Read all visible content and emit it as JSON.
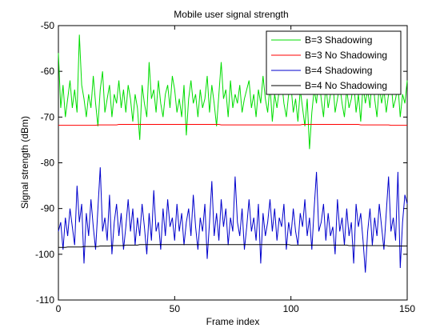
{
  "chart_data": {
    "type": "line",
    "title": "Mobile user signal strength",
    "xlabel": "Frame index",
    "ylabel": "Signal strength (dBm)",
    "xlim": [
      0,
      150
    ],
    "ylim": [
      -110,
      -50
    ],
    "xticks": [
      0,
      50,
      100,
      150
    ],
    "yticks": [
      -50,
      -60,
      -70,
      -80,
      -90,
      -100,
      -110
    ],
    "grid": false,
    "legend_position": "top-right",
    "series": [
      {
        "name": "B=3 Shadowing",
        "color": "#00dd00",
        "values": [
          -56,
          -68,
          -63,
          -70,
          -66,
          -62,
          -68,
          -64,
          -69,
          -52,
          -63,
          -66,
          -70,
          -65,
          -68,
          -61,
          -67,
          -72,
          -64,
          -60,
          -69,
          -66,
          -63,
          -70,
          -65,
          -67,
          -62,
          -68,
          -64,
          -69,
          -63,
          -66,
          -71,
          -65,
          -68,
          -75,
          -63,
          -67,
          -70,
          -58,
          -66,
          -64,
          -69,
          -62,
          -67,
          -70,
          -65,
          -63,
          -68,
          -61,
          -64,
          -69,
          -66,
          -70,
          -63,
          -74,
          -66,
          -62,
          -67,
          -65,
          -70,
          -64,
          -68,
          -66,
          -61,
          -69,
          -63,
          -67,
          -72,
          -65,
          -58,
          -66,
          -64,
          -70,
          -62,
          -68,
          -65,
          -67,
          -63,
          -69,
          -66,
          -64,
          -62,
          -68,
          -65,
          -70,
          -64,
          -67,
          -61,
          -66,
          -69,
          -63,
          -71,
          -65,
          -68,
          -64,
          -62,
          -67,
          -70,
          -65,
          -63,
          -69,
          -66,
          -71,
          -64,
          -68,
          -72,
          -66,
          -77,
          -69,
          -64,
          -67,
          -61,
          -66,
          -70,
          -63,
          -68,
          -65,
          -62,
          -69,
          -66,
          -63,
          -67,
          -70,
          -64,
          -68,
          -66,
          -62,
          -69,
          -65,
          -71,
          -63,
          -67,
          -64,
          -68,
          -60,
          -66,
          -70,
          -63,
          -67,
          -64,
          -69,
          -65,
          -62,
          -68,
          -66,
          -63,
          -70,
          -65,
          -67,
          -62
        ]
      },
      {
        "name": "B=3 No Shadowing",
        "color": "#ff0000",
        "values": [
          -71.8,
          -71.8,
          -71.8,
          -71.8,
          -71.8,
          -71.8,
          -71.8,
          -71.8,
          -71.8,
          -71.8,
          -71.8,
          -71.8,
          -71.8,
          -71.8,
          -71.8,
          -71.8,
          -71.8,
          -71.7,
          -71.7,
          -71.7,
          -71.7,
          -71.7,
          -71.7,
          -71.7,
          -71.7,
          -71.7,
          -71.6,
          -71.6,
          -71.6,
          -71.6,
          -71.6,
          -71.6,
          -71.6,
          -71.6,
          -71.6,
          -71.6,
          -71.6,
          -71.6,
          -71.6,
          -71.6,
          -71.6,
          -71.6,
          -71.6,
          -71.6,
          -71.6,
          -71.6,
          -71.6,
          -71.6,
          -71.6,
          -71.6,
          -71.6,
          -71.6,
          -71.6,
          -71.6,
          -71.6,
          -71.6,
          -71.6,
          -71.6,
          -71.6,
          -71.6,
          -71.6,
          -71.6,
          -71.6,
          -71.6,
          -71.6,
          -71.6,
          -71.6,
          -71.6,
          -71.6,
          -71.6,
          -71.7,
          -71.7,
          -71.7,
          -71.7,
          -71.7,
          -71.7,
          -71.7,
          -71.7,
          -71.7,
          -71.7,
          -71.7,
          -71.7,
          -71.7,
          -71.7,
          -71.7,
          -71.7,
          -71.7,
          -71.7,
          -71.7,
          -71.7,
          -71.7,
          -71.7,
          -71.7,
          -71.7,
          -71.7,
          -71.7,
          -71.7,
          -71.7,
          -71.7,
          -71.7,
          -71.7,
          -71.7,
          -71.7,
          -71.7,
          -71.7,
          -71.6,
          -71.6,
          -71.6,
          -71.6,
          -71.6,
          -71.6,
          -71.6,
          -71.6,
          -71.6,
          -71.6,
          -71.6,
          -71.6,
          -71.6,
          -71.6,
          -71.6,
          -71.6,
          -71.6,
          -71.6,
          -71.6,
          -71.6,
          -71.6,
          -71.6,
          -71.6,
          -71.6,
          -71.6,
          -71.7,
          -71.7,
          -71.7,
          -71.7,
          -71.7,
          -71.7,
          -71.7,
          -71.7,
          -71.7,
          -71.7,
          -71.7,
          -71.7,
          -71.7,
          -71.8,
          -71.8,
          -71.8,
          -71.8,
          -71.8,
          -71.8,
          -71.8,
          -71.8
        ]
      },
      {
        "name": "B=4 Shadowing",
        "color": "#0000cc",
        "values": [
          -95,
          -93,
          -99,
          -92,
          -96,
          -90,
          -94,
          -98,
          -85,
          -93,
          -89,
          -102,
          -91,
          -96,
          -88,
          -94,
          -99,
          -90,
          -81,
          -95,
          -92,
          -97,
          -87,
          -100,
          -93,
          -89,
          -96,
          -91,
          -99,
          -94,
          -88,
          -95,
          -90,
          -98,
          -92,
          -96,
          -89,
          -94,
          -100,
          -91,
          -97,
          -86,
          -95,
          -93,
          -99,
          -90,
          -96,
          -88,
          -94,
          -92,
          -97,
          -89,
          -95,
          -91,
          -98,
          -93,
          -90,
          -96,
          -87,
          -94,
          -99,
          -92,
          -95,
          -89,
          -101,
          -93,
          -84,
          -96,
          -91,
          -97,
          -88,
          -94,
          -90,
          -98,
          -92,
          -95,
          -83,
          -93,
          -96,
          -90,
          -99,
          -94,
          -88,
          -95,
          -92,
          -97,
          -89,
          -102,
          -91,
          -96,
          -93,
          -88,
          -95,
          -90,
          -97,
          -92,
          -94,
          -89,
          -99,
          -93,
          -96,
          -90,
          -95,
          -98,
          -91,
          -94,
          -88,
          -96,
          -92,
          -99,
          -90,
          -82,
          -95,
          -93,
          -89,
          -97,
          -91,
          -96,
          -94,
          -100,
          -88,
          -95,
          -92,
          -98,
          -90,
          -96,
          -93,
          -102,
          -89,
          -94,
          -91,
          -97,
          -104,
          -95,
          -90,
          -98,
          -92,
          -96,
          -89,
          -94,
          -99,
          -91,
          -83,
          -95,
          -92,
          -97,
          -82,
          -103,
          -93,
          -87,
          -89
        ]
      },
      {
        "name": "B=4 No Shadowing",
        "color": "#000000",
        "values": [
          -98.5,
          -98.5,
          -98.5,
          -98.5,
          -98.4,
          -98.4,
          -98.4,
          -98.4,
          -98.4,
          -98.4,
          -98.4,
          -98.3,
          -98.3,
          -98.3,
          -98.3,
          -98.3,
          -98.3,
          -98.3,
          -98.2,
          -98.2,
          -98.2,
          -98.2,
          -98.2,
          -98.1,
          -98.1,
          -98.1,
          -98.1,
          -98.1,
          -98.1,
          -98.0,
          -98.0,
          -98.0,
          -98.0,
          -98.0,
          -98.0,
          -97.9,
          -97.9,
          -97.9,
          -97.9,
          -97.9,
          -97.9,
          -97.9,
          -97.9,
          -97.9,
          -97.9,
          -97.9,
          -97.9,
          -97.9,
          -97.9,
          -97.9,
          -97.9,
          -97.9,
          -97.9,
          -97.9,
          -97.9,
          -97.9,
          -97.9,
          -97.9,
          -97.9,
          -97.9,
          -97.9,
          -97.9,
          -97.9,
          -97.9,
          -97.9,
          -97.9,
          -97.9,
          -97.9,
          -97.9,
          -97.9,
          -97.9,
          -97.9,
          -97.9,
          -97.9,
          -97.9,
          -97.9,
          -97.9,
          -97.9,
          -97.9,
          -97.9,
          -97.9,
          -97.9,
          -97.9,
          -97.9,
          -97.9,
          -97.9,
          -97.9,
          -97.9,
          -97.9,
          -97.9,
          -97.9,
          -97.9,
          -97.9,
          -97.9,
          -97.9,
          -97.9,
          -97.9,
          -97.9,
          -97.9,
          -97.9,
          -98.0,
          -98.0,
          -98.0,
          -98.0,
          -98.0,
          -98.0,
          -98.0,
          -98.0,
          -98.0,
          -98.0,
          -98.0,
          -98.0,
          -98.0,
          -98.0,
          -98.0,
          -98.0,
          -98.0,
          -98.0,
          -98.0,
          -98.0,
          -98.0,
          -98.0,
          -98.0,
          -98.0,
          -98.0,
          -98.1,
          -98.1,
          -98.1,
          -98.1,
          -98.1,
          -98.1,
          -98.1,
          -98.1,
          -98.1,
          -98.1,
          -98.1,
          -98.1,
          -98.1,
          -98.1,
          -98.1,
          -98.1,
          -98.1,
          -98.2,
          -98.2,
          -98.2,
          -98.2,
          -98.2,
          -98.2,
          -98.2,
          -98.2,
          -98.2
        ]
      }
    ]
  }
}
